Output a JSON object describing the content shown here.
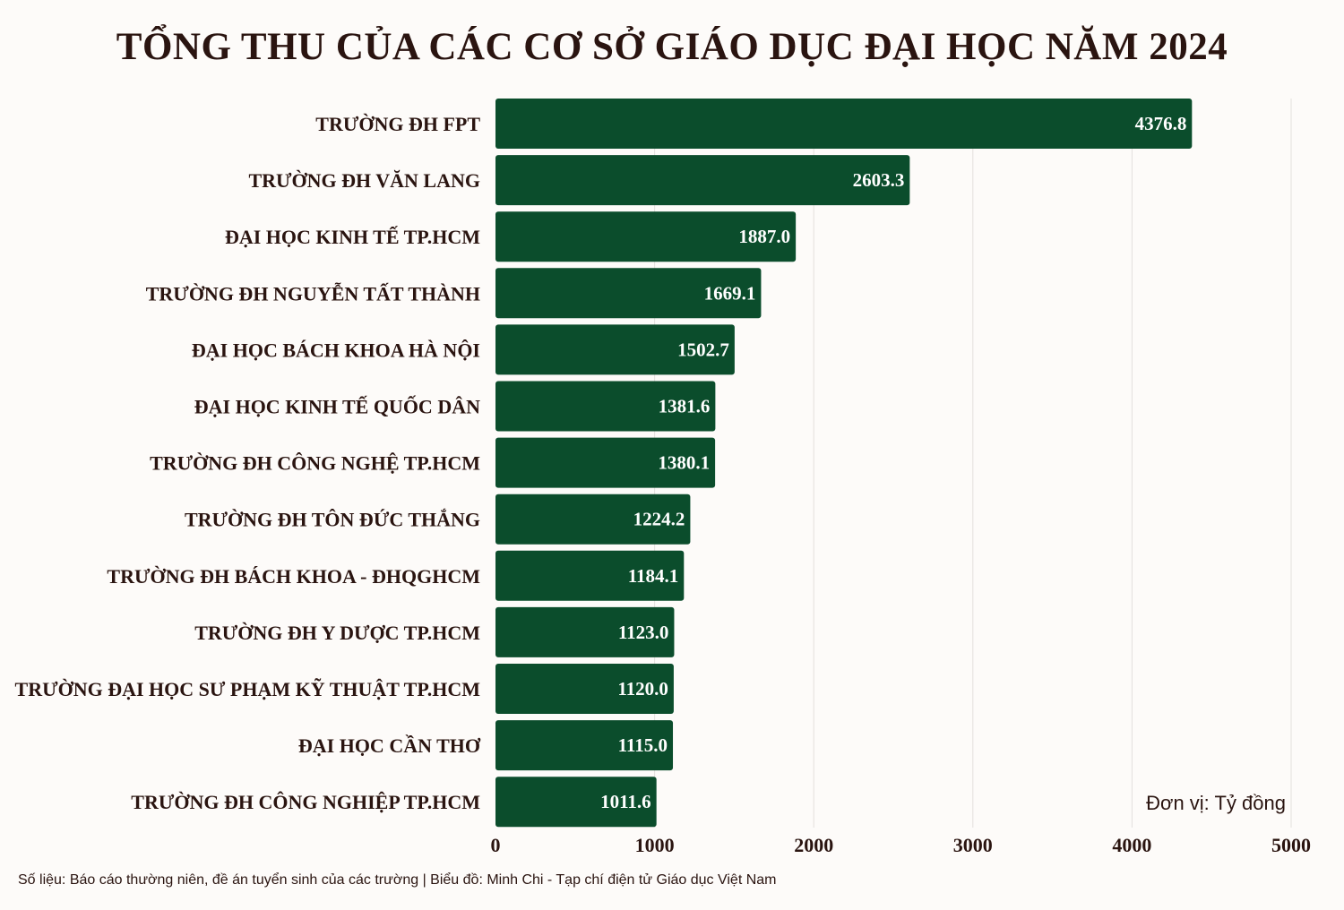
{
  "title": "TỔNG THU CỦA CÁC CƠ SỞ GIÁO DỤC ĐẠI HỌC NĂM 2024",
  "source": "Số liệu: Báo cáo thường niên, đề án tuyển sinh của các trường  |  Biểu đồ: Minh Chi - Tạp chí điện tử Giáo dục Việt Nam",
  "colors": {
    "bar": "#0b4d2c",
    "grid": "#e3e0dd",
    "text": "#2a1410",
    "background": "#fdfbf9"
  },
  "chart_data": {
    "type": "bar",
    "orientation": "horizontal",
    "title": "TỔNG THU CỦA CÁC CƠ SỞ GIÁO DỤC ĐẠI HỌC NĂM 2024",
    "unit_note": "Đơn vị: Tỷ đồng",
    "categories": [
      "TRƯỜNG ĐH FPT",
      "TRƯỜNG ĐH VĂN LANG",
      "ĐẠI HỌC KINH TẾ TP.HCM",
      "TRƯỜNG ĐH NGUYỄN TẤT THÀNH",
      "ĐẠI HỌC BÁCH KHOA HÀ NỘI",
      "ĐẠI HỌC KINH TẾ QUỐC DÂN",
      "TRƯỜNG ĐH CÔNG NGHỆ TP.HCM",
      "TRƯỜNG ĐH TÔN ĐỨC THẮNG",
      "TRƯỜNG ĐH BÁCH KHOA - ĐHQGHCM",
      "TRƯỜNG ĐH Y DƯỢC TP.HCM",
      "TRƯỜNG ĐẠI HỌC SƯ PHẠM KỸ THUẬT TP.HCM",
      "ĐẠI HỌC CẦN THƠ",
      "TRƯỜNG ĐH CÔNG NGHIỆP TP.HCM"
    ],
    "values": [
      4376.8,
      2603.3,
      1887.0,
      1669.1,
      1502.7,
      1381.6,
      1380.1,
      1224.2,
      1184.1,
      1123.0,
      1120.0,
      1115.0,
      1011.6
    ],
    "value_labels": [
      "4376.8",
      "2603.3",
      "1887.0",
      "1669.1",
      "1502.7",
      "1381.6",
      "1380.1",
      "1224.2",
      "1184.1",
      "1123.0",
      "1120.0",
      "1115.0",
      "1011.6"
    ],
    "xlim": [
      0,
      5000
    ],
    "xticks": [
      0,
      1000,
      2000,
      3000,
      4000,
      5000
    ],
    "xtick_labels": [
      "0",
      "1000",
      "2000",
      "3000",
      "4000",
      "5000"
    ],
    "grid": true
  }
}
